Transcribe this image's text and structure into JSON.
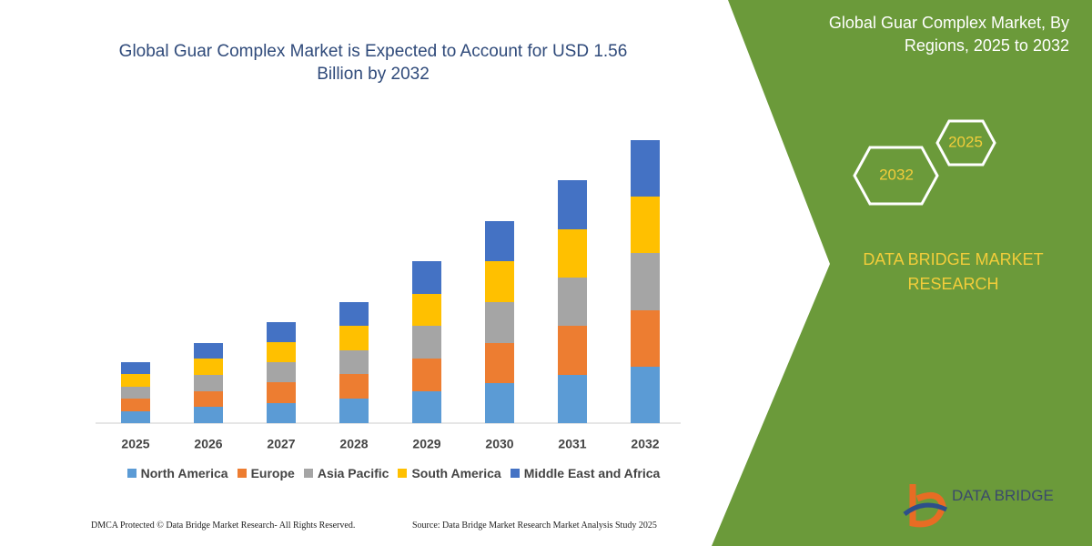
{
  "chart_data": {
    "type": "stacked_bar",
    "title": "Global Guar Complex Market is Expected to Account for USD 1.56 Billion by 2032",
    "categories": [
      "2025",
      "2026",
      "2027",
      "2028",
      "2029",
      "2030",
      "2031",
      "2032"
    ],
    "series": [
      {
        "name": "North America",
        "color": "#5b9bd5",
        "values": [
          13,
          18,
          22,
          27,
          35,
          44,
          53,
          62
        ]
      },
      {
        "name": "Europe",
        "color": "#ed7d31",
        "values": [
          14,
          17,
          23,
          27,
          36,
          44,
          54,
          62
        ]
      },
      {
        "name": "Asia Pacific",
        "color": "#a5a5a5",
        "values": [
          13,
          18,
          22,
          26,
          36,
          45,
          53,
          63
        ]
      },
      {
        "name": "South America",
        "color": "#ffc000",
        "values": [
          14,
          18,
          22,
          27,
          35,
          45,
          53,
          62
        ]
      },
      {
        "name": "Middle East and Africa",
        "color": "#4472c4",
        "values": [
          13,
          17,
          22,
          26,
          36,
          44,
          54,
          62
        ]
      }
    ],
    "legend": "bottom"
  },
  "panel": {
    "title": "Global Guar Complex Market, By Regions, 2025 to 2032",
    "hexagons": [
      "2032",
      "2025"
    ],
    "brand": "DATA BRIDGE MARKET RESEARCH"
  },
  "footer": {
    "dmca": "DMCA Protected © Data Bridge Market Research-  All Rights Reserved.",
    "source": "Source: Data Bridge Market Research  Market Analysis Study 2025"
  },
  "logo": {
    "text": "DATA BRIDGE"
  }
}
